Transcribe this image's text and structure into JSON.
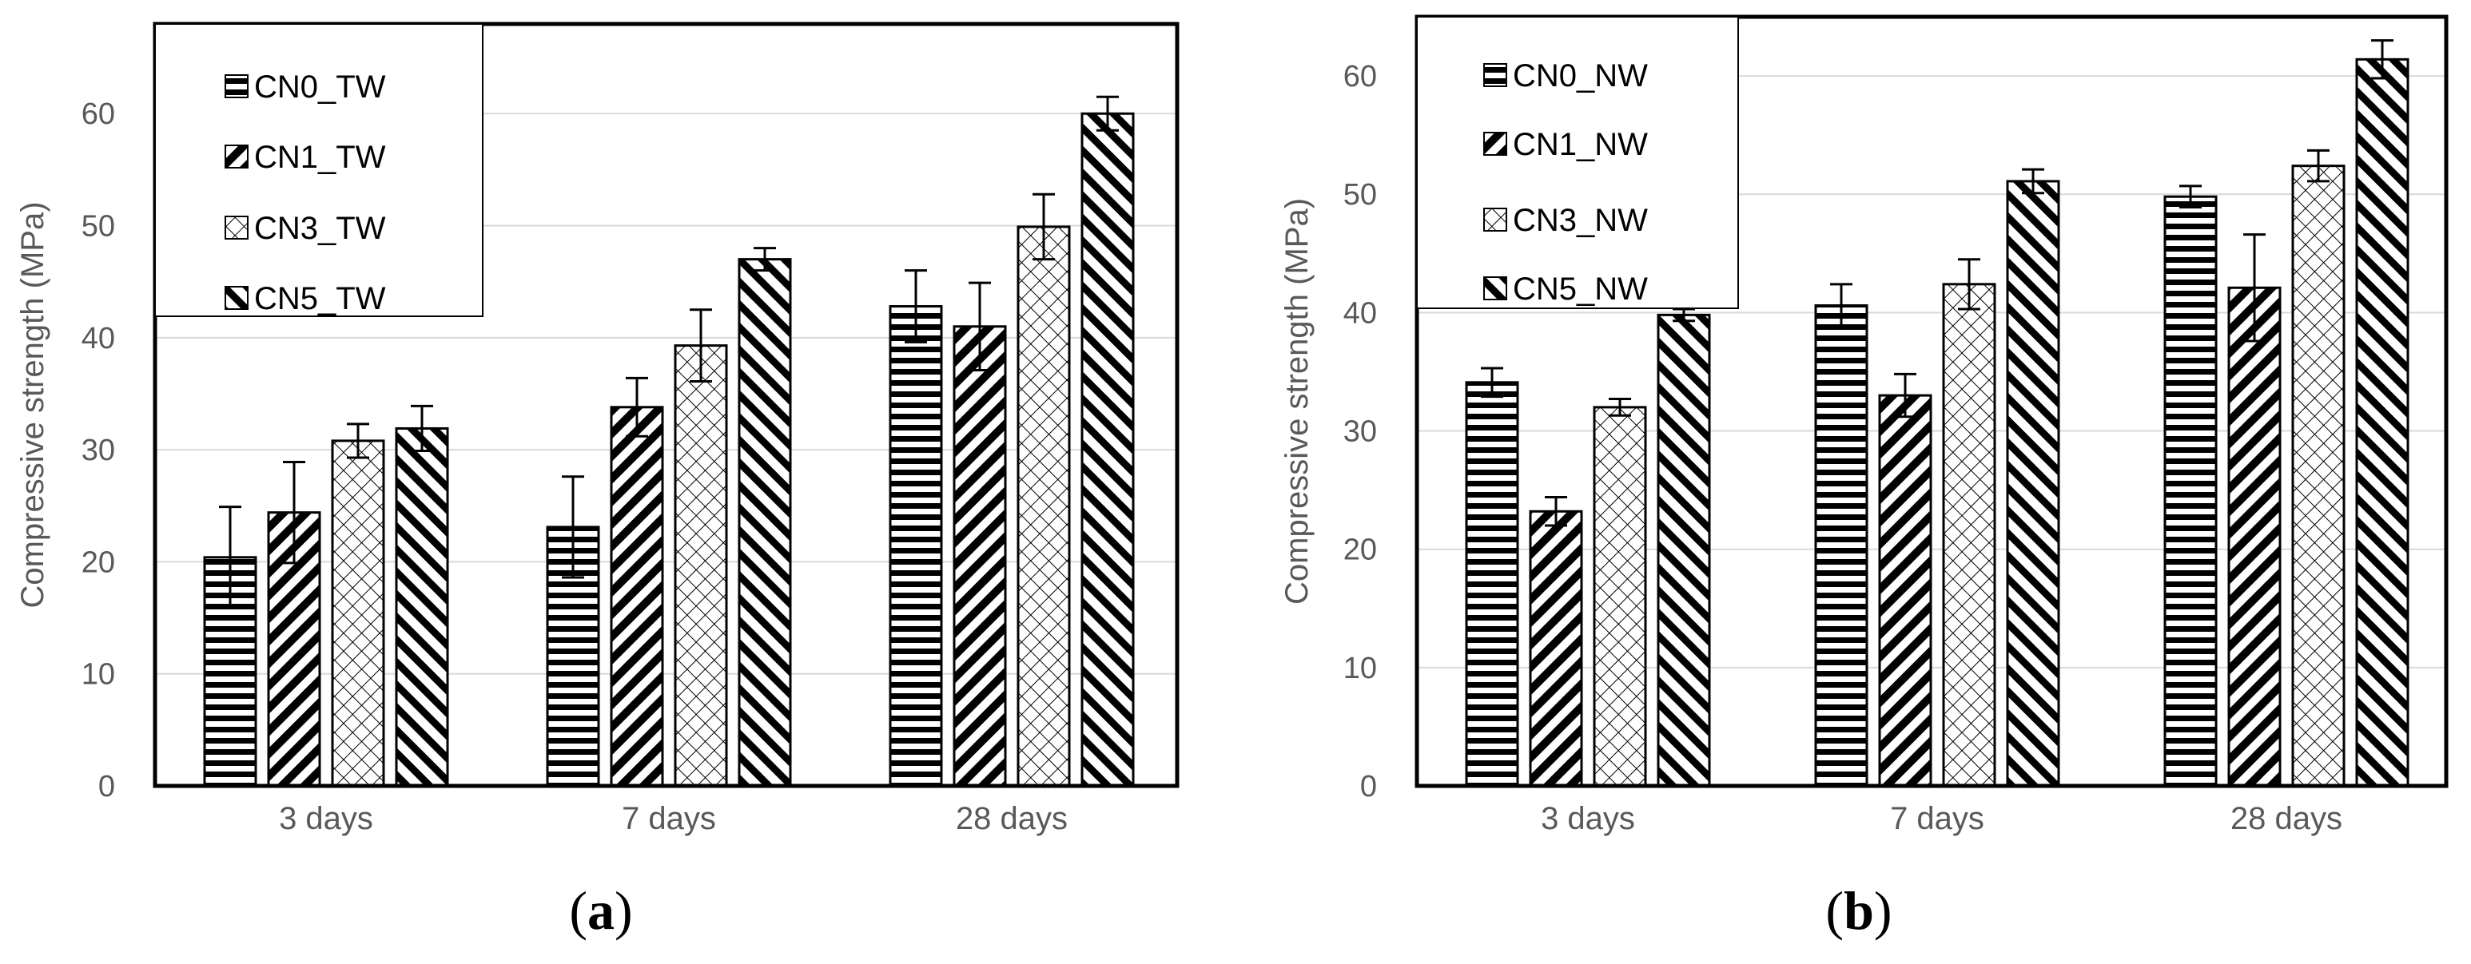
{
  "figure": {
    "panels": [
      {
        "sublabel_open": "(",
        "sublabel_letter": "a",
        "sublabel_close": ")"
      },
      {
        "sublabel_open": "(",
        "sublabel_letter": "b",
        "sublabel_close": ")"
      }
    ]
  },
  "chart_data": [
    {
      "type": "bar",
      "title": "",
      "xlabel": "",
      "ylabel": "Compressive  strength (MPa)",
      "ylim": [
        0,
        68
      ],
      "yticks": [
        0,
        10,
        20,
        30,
        40,
        50,
        60
      ],
      "grid": true,
      "legend_position": "top-left",
      "categories": [
        "3 days",
        "7 days",
        "28 days"
      ],
      "series": [
        {
          "name": "CN0_TW",
          "pattern": "horizontal",
          "values": [
            20.4,
            23.1,
            42.8
          ],
          "errors": [
            4.5,
            4.5,
            3.2
          ]
        },
        {
          "name": "CN1_TW",
          "pattern": "diagonal-back",
          "values": [
            24.4,
            33.8,
            41.0
          ],
          "errors": [
            4.5,
            2.6,
            3.9
          ]
        },
        {
          "name": "CN3_TW",
          "pattern": "checker",
          "values": [
            30.8,
            39.3,
            49.9
          ],
          "errors": [
            1.5,
            3.2,
            2.9
          ]
        },
        {
          "name": "CN5_TW",
          "pattern": "diagonal-forward",
          "values": [
            31.9,
            47.0,
            60.0
          ],
          "errors": [
            2.0,
            1.0,
            1.5
          ]
        }
      ]
    },
    {
      "type": "bar",
      "title": "",
      "xlabel": "",
      "ylabel": "Compressive  strength (MPa)",
      "ylim": [
        0,
        65
      ],
      "yticks": [
        0,
        10,
        20,
        30,
        40,
        50,
        60
      ],
      "grid": true,
      "legend_position": "top-left",
      "categories": [
        "3 days",
        "7 days",
        "28 days"
      ],
      "series": [
        {
          "name": "CN0_NW",
          "pattern": "horizontal",
          "values": [
            34.1,
            40.6,
            49.8
          ],
          "errors": [
            1.2,
            1.8,
            0.9
          ]
        },
        {
          "name": "CN1_NW",
          "pattern": "diagonal-back",
          "values": [
            23.2,
            33.0,
            42.1
          ],
          "errors": [
            1.2,
            1.8,
            4.5
          ]
        },
        {
          "name": "CN3_NW",
          "pattern": "checker",
          "values": [
            32.0,
            42.4,
            52.4
          ],
          "errors": [
            0.7,
            2.1,
            1.3
          ]
        },
        {
          "name": "CN5_NW",
          "pattern": "diagonal-forward",
          "values": [
            39.8,
            51.1,
            61.4
          ],
          "errors": [
            0.5,
            1.0,
            1.6
          ]
        }
      ]
    }
  ],
  "colors": {
    "bar_edge": "#000000",
    "bar_fill": "#ffffff",
    "grid": "#d9d9d9",
    "tick_text": "#595959",
    "frame": "#000000"
  }
}
